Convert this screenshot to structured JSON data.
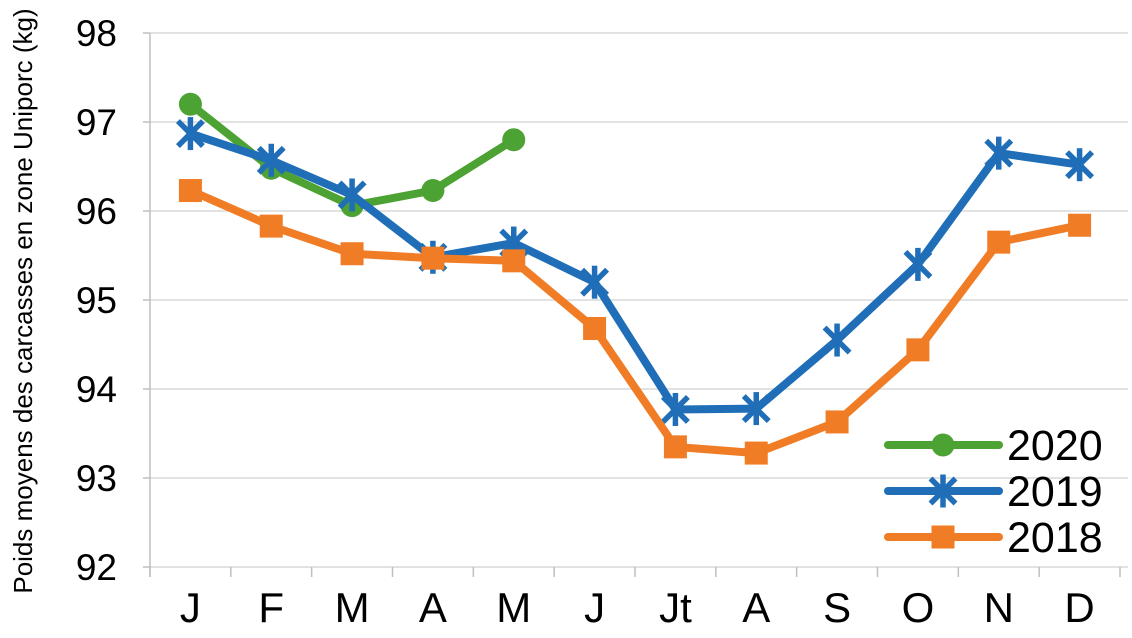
{
  "chart_data": {
    "type": "line",
    "title": "",
    "xlabel": "",
    "ylabel": "Poids moyens des carcasses en zone Uniporc (kg)",
    "categories": [
      "J",
      "F",
      "M",
      "A",
      "M",
      "J",
      "Jt",
      "A",
      "S",
      "O",
      "N",
      "D"
    ],
    "series": [
      {
        "name": "2020",
        "color": "#4ca232",
        "marker": "circle",
        "values": [
          97.2,
          96.48,
          96.06,
          96.23,
          96.8,
          null,
          null,
          null,
          null,
          null,
          null,
          null
        ]
      },
      {
        "name": "2019",
        "color": "#1f6eb7",
        "marker": "asterisk",
        "values": [
          96.87,
          96.57,
          96.18,
          95.48,
          95.64,
          95.2,
          93.77,
          93.78,
          94.55,
          95.4,
          96.65,
          96.52
        ]
      },
      {
        "name": "2018",
        "color": "#f07d26",
        "marker": "square",
        "values": [
          96.23,
          95.83,
          95.52,
          95.47,
          95.44,
          94.68,
          93.35,
          93.28,
          93.63,
          94.44,
          95.65,
          95.84
        ]
      }
    ],
    "ylim": [
      92,
      98
    ],
    "y_ticks": [
      98,
      97,
      96,
      95,
      94,
      93,
      92
    ],
    "grid": "horizontal-only",
    "legend": {
      "position": "inside-right",
      "entries": [
        "2020",
        "2019",
        "2018"
      ]
    },
    "colors": {
      "gridline": "#d9d9d9",
      "axis": "#bfbfbf",
      "text": "#000000"
    }
  }
}
